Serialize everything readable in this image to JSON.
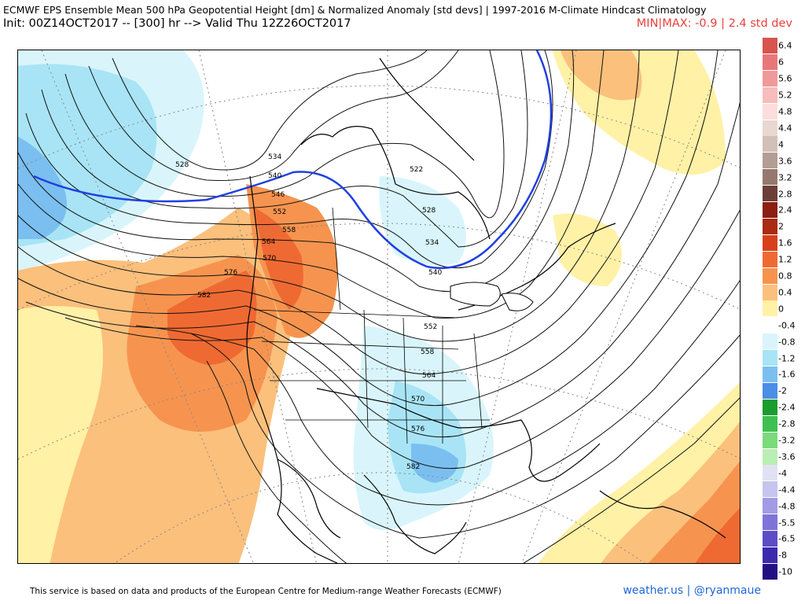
{
  "header": {
    "title": "ECMWF EPS Ensemble Mean 500 hPa Geopotential Height [dm] & Normalized Anomaly [std devs] | 1997-2016 M-Climate Hindcast Climatology",
    "init_line": "Init: 00Z14OCT2017 -- [300] hr --> Valid Thu 12Z26OCT2017",
    "minmax": "MIN|MAX: -0.9 | 2.4 std dev"
  },
  "map": {
    "height_labels": [
      "528",
      "534",
      "540",
      "546",
      "552",
      "558",
      "564",
      "570",
      "576",
      "582",
      "522",
      "528",
      "534",
      "540",
      "552",
      "558",
      "564",
      "570",
      "576",
      "582"
    ]
  },
  "colorbar": {
    "ticks": [
      "6.4",
      "6",
      "5.6",
      "5.2",
      "4.8",
      "4.4",
      "4",
      "3.6",
      "3.2",
      "2.8",
      "2.4",
      "2",
      "1.6",
      "1.2",
      "0.8",
      "0.4",
      "0",
      "-0.4",
      "-0.8",
      "-1.2",
      "-1.6",
      "-2",
      "-2.4",
      "-2.8",
      "-3.2",
      "-3.6",
      "-4",
      "-4.4",
      "-4.8",
      "-5.5",
      "-6.5",
      "-8",
      "-10"
    ],
    "colors": [
      "#d9534f",
      "#e8777a",
      "#f0999a",
      "#f7bcbc",
      "#fbdddd",
      "#e9d7d2",
      "#d1bfb8",
      "#b49d94",
      "#96796e",
      "#6b3f35",
      "#8b1f11",
      "#a82b12",
      "#d8401c",
      "#ef6a32",
      "#f6944f",
      "#fbc07c",
      "#fff1a6",
      "#ffffff",
      "#d9f5fb",
      "#a8e4f5",
      "#7bbff0",
      "#4b8ee6",
      "#1b9c2e",
      "#3fc04f",
      "#7ada7c",
      "#b9efb4",
      "#e1e1f4",
      "#c5c5ee",
      "#a19ce4",
      "#7f75d8",
      "#5e4cc7",
      "#3b2bac",
      "#231183"
    ]
  },
  "footer": {
    "disclaimer": "This service is based on data and products of the European Centre for Medium-range Weather Forecasts (ECMWF)",
    "credit": "weather.us | @ryanmaue"
  }
}
